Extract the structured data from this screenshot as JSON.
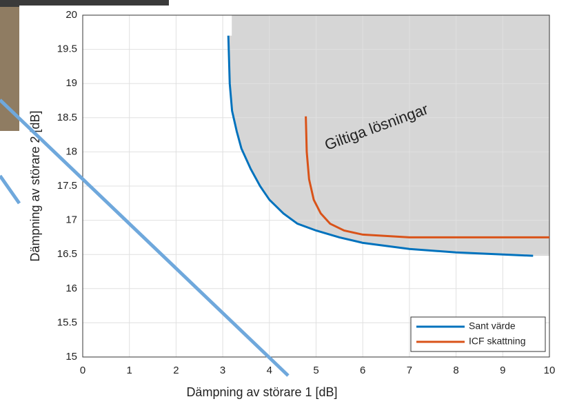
{
  "chart_data": {
    "type": "line",
    "xlabel": "Dämpning av störare 1 [dB]",
    "ylabel": "Dämpning av störare 2 [dB]",
    "annotation": "Giltiga lösningar",
    "xlim": [
      0,
      10
    ],
    "xticks": [
      0,
      1,
      2,
      3,
      4,
      5,
      6,
      7,
      8,
      9,
      10
    ],
    "ylim": [
      15,
      20
    ],
    "yticks": [
      15,
      15.5,
      16,
      16.5,
      17,
      17.5,
      18,
      18.5,
      19,
      19.5,
      20
    ],
    "grid": true,
    "legend": "lower right",
    "series": [
      {
        "name": "Sant värde",
        "color": "#0072bd",
        "x": [
          3.12,
          3.15,
          3.2,
          3.3,
          3.4,
          3.6,
          3.8,
          4.0,
          4.3,
          4.6,
          5.0,
          5.5,
          6,
          7,
          8,
          9,
          9.65
        ],
        "values": [
          19.7,
          19.0,
          18.6,
          18.3,
          18.05,
          17.75,
          17.5,
          17.3,
          17.1,
          16.95,
          16.85,
          16.75,
          16.67,
          16.58,
          16.53,
          16.5,
          16.48
        ]
      },
      {
        "name": "ICF skattning",
        "color": "#d95319",
        "x": [
          4.78,
          4.8,
          4.85,
          4.95,
          5.1,
          5.3,
          5.6,
          6,
          7,
          8,
          10
        ],
        "values": [
          18.52,
          18.0,
          17.6,
          17.3,
          17.1,
          16.95,
          16.85,
          16.79,
          16.75,
          16.75,
          16.75
        ]
      }
    ]
  }
}
